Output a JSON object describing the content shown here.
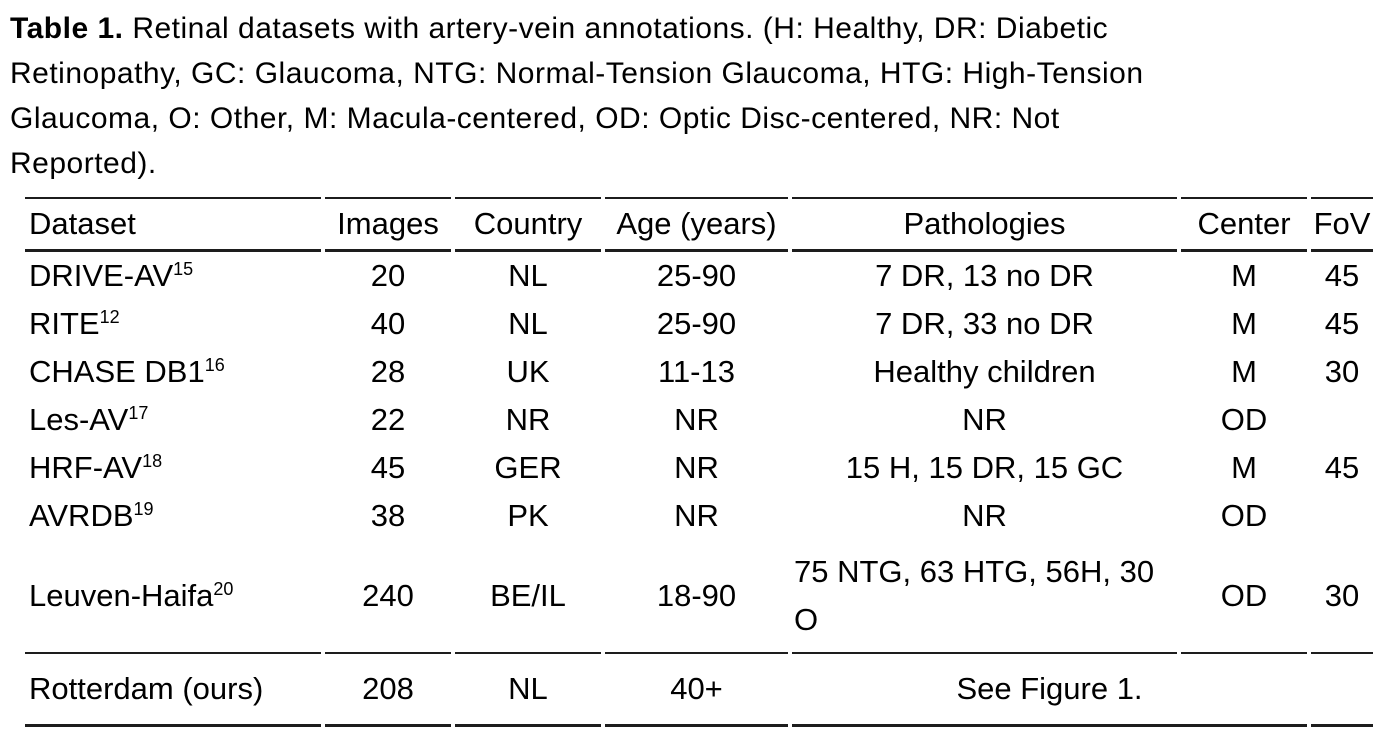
{
  "caption": {
    "label": "Table 1.",
    "text": " Retinal datasets with artery-vein annotations. (H: Healthy, DR: Diabetic\nRetinopathy, GC: Glaucoma, NTG: Normal-Tension Glaucoma, HTG: High-Tension\nGlaucoma, O: Other, M: Macula-centered, OD: Optic Disc-centered, NR: Not\nReported)."
  },
  "table": {
    "headers": [
      "Dataset",
      "Images",
      "Country",
      "Age (years)",
      "Pathologies",
      "Center",
      "FoV"
    ],
    "rows": [
      {
        "dataset": "DRIVE-AV",
        "ref": "15",
        "images": "20",
        "country": "NL",
        "age": "25-90",
        "pathologies": "7 DR, 13 no DR",
        "center": "M",
        "fov": "45"
      },
      {
        "dataset": "RITE",
        "ref": "12",
        "images": "40",
        "country": "NL",
        "age": "25-90",
        "pathologies": "7 DR, 33 no DR",
        "center": "M",
        "fov": "45"
      },
      {
        "dataset": "CHASE DB1",
        "ref": "16",
        "images": "28",
        "country": "UK",
        "age": "11-13",
        "pathologies": "Healthy children",
        "center": "M",
        "fov": "30"
      },
      {
        "dataset": "Les-AV",
        "ref": "17",
        "images": "22",
        "country": "NR",
        "age": "NR",
        "pathologies": "NR",
        "center": "OD",
        "fov": ""
      },
      {
        "dataset": "HRF-AV",
        "ref": "18",
        "images": "45",
        "country": "GER",
        "age": "NR",
        "pathologies": "15 H, 15 DR, 15 GC",
        "center": "M",
        "fov": "45"
      },
      {
        "dataset": "AVRDB",
        "ref": "19",
        "images": "38",
        "country": "PK",
        "age": "NR",
        "pathologies": "NR",
        "center": "OD",
        "fov": ""
      },
      {
        "dataset": "Leuven-Haifa",
        "ref": "20",
        "images": "240",
        "country": "BE/IL",
        "age": "18-90",
        "pathologies": "75 NTG, 63 HTG, 56H, 30 O",
        "center": "OD",
        "fov": "30"
      },
      {
        "dataset": "Rotterdam (ours)",
        "images": "208",
        "country": "NL",
        "age": "40+",
        "pathologies": "See Figure 1.",
        "fov": ""
      }
    ]
  },
  "colors": {
    "text": "#000000",
    "rule": "#1d1d1d",
    "background": "#ffffff"
  }
}
